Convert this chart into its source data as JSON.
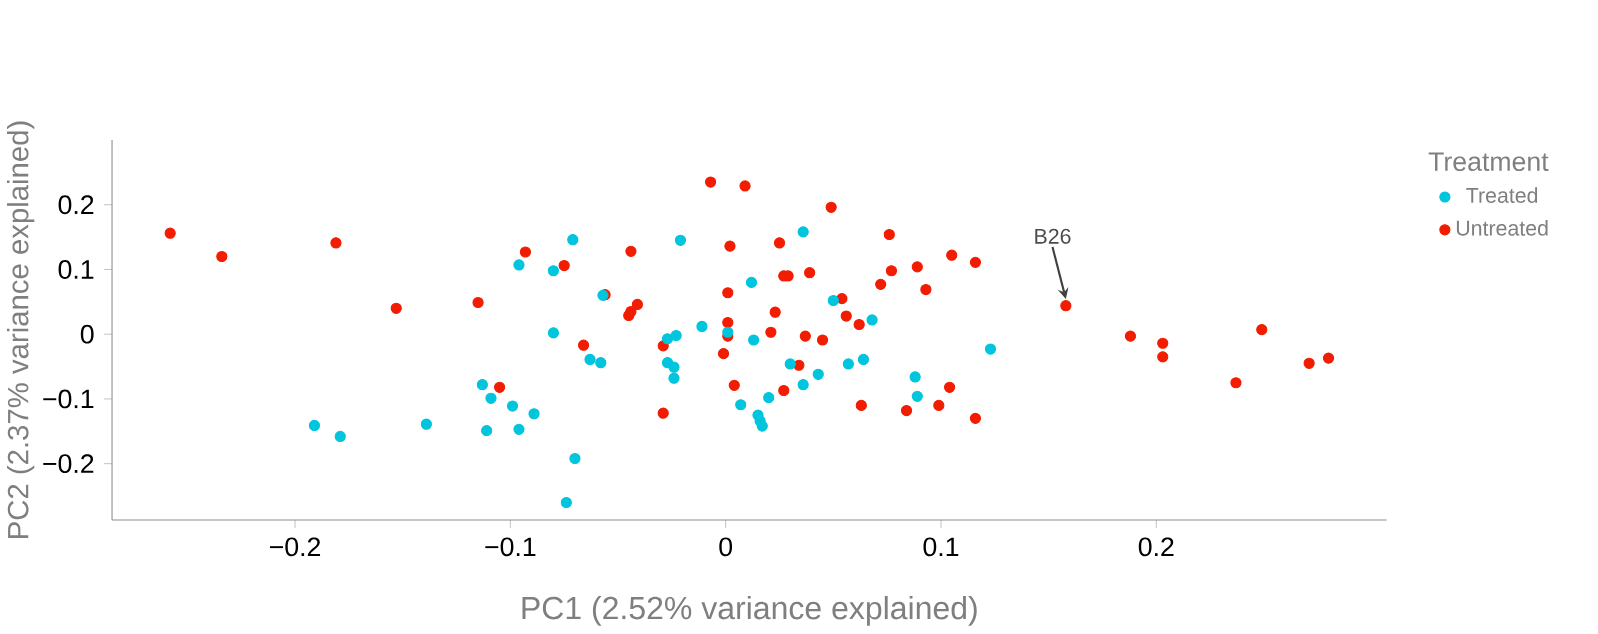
{
  "chart_data": {
    "type": "scatter",
    "xlabel": "PC1 (2.52% variance explained)",
    "ylabel": "PC2 (2.37% variance explained)",
    "legend_title": "Treatment",
    "xlim": [
      -0.285,
      0.307
    ],
    "ylim": [
      -0.287,
      0.3
    ],
    "xticks": [
      {
        "value": -0.2,
        "label": "−0.2"
      },
      {
        "value": -0.1,
        "label": "−0.1"
      },
      0,
      0.1,
      0.2
    ],
    "yticks": [
      {
        "value": -0.2,
        "label": "−0.2"
      },
      {
        "value": -0.1,
        "label": "−0.1"
      },
      0,
      0.1,
      0.2
    ],
    "grid": false,
    "legend": "top right",
    "marker": "circle",
    "annotations": [
      {
        "text": "B26",
        "x": 0.158,
        "y": 0.044
      }
    ],
    "series": [
      {
        "name": "Treated",
        "color": "#00c5dc",
        "x": [
          -0.096,
          -0.08,
          -0.071,
          -0.08,
          -0.113,
          -0.109,
          -0.099,
          -0.089,
          -0.111,
          -0.096,
          -0.191,
          -0.179,
          -0.139,
          -0.074,
          -0.07,
          -0.021,
          0.036,
          0.012,
          -0.057,
          0.05,
          0.068,
          -0.011,
          0.001,
          -0.027,
          -0.023,
          0.013,
          0.123,
          -0.063,
          -0.058,
          -0.027,
          -0.024,
          -0.024,
          0.03,
          0.043,
          0.057,
          0.064,
          0.036,
          0.088,
          0.089,
          0.02,
          0.007,
          0.015,
          0.016,
          0.017
        ],
        "values": [
          0.107,
          0.098,
          0.146,
          0.002,
          -0.078,
          -0.099,
          -0.111,
          -0.123,
          -0.149,
          -0.147,
          -0.141,
          -0.158,
          -0.139,
          -0.26,
          -0.192,
          0.145,
          0.158,
          0.08,
          0.06,
          0.052,
          0.022,
          0.012,
          0.003,
          -0.007,
          -0.002,
          -0.009,
          -0.023,
          -0.039,
          -0.044,
          -0.044,
          -0.051,
          -0.068,
          -0.046,
          -0.062,
          -0.046,
          -0.039,
          -0.078,
          -0.066,
          -0.096,
          -0.098,
          -0.109,
          -0.125,
          -0.134,
          -0.142
        ]
      },
      {
        "name": "Untreated",
        "color": "#f21d00",
        "x": [
          -0.258,
          -0.234,
          -0.181,
          -0.153,
          -0.115,
          -0.105,
          -0.093,
          -0.075,
          -0.007,
          0.009,
          0.049,
          0.076,
          -0.044,
          0.002,
          0.025,
          0.105,
          0.116,
          0.077,
          0.089,
          0.027,
          0.029,
          0.039,
          0.072,
          0.093,
          -0.056,
          0.001,
          -0.041,
          -0.044,
          -0.045,
          0.023,
          0.054,
          0.056,
          0.062,
          0.001,
          0.021,
          0.001,
          0.037,
          0.045,
          -0.066,
          -0.029,
          -0.001,
          0.034,
          0.004,
          0.027,
          0.104,
          0.063,
          0.084,
          0.099,
          0.116,
          -0.029,
          0.158,
          0.188,
          0.203,
          0.203,
          0.249,
          0.237,
          0.271,
          0.28
        ],
        "values": [
          0.156,
          0.12,
          0.141,
          0.04,
          0.049,
          -0.082,
          0.127,
          0.106,
          0.235,
          0.229,
          0.196,
          0.154,
          0.128,
          0.136,
          0.141,
          0.122,
          0.111,
          0.098,
          0.104,
          0.09,
          0.09,
          0.095,
          0.077,
          0.069,
          0.061,
          0.064,
          0.046,
          0.035,
          0.029,
          0.034,
          0.055,
          0.028,
          0.015,
          0.018,
          0.003,
          -0.003,
          -0.003,
          -0.009,
          -0.017,
          -0.018,
          -0.03,
          -0.048,
          -0.079,
          -0.087,
          -0.082,
          -0.11,
          -0.118,
          -0.11,
          -0.13,
          -0.122,
          0.044,
          -0.003,
          -0.014,
          -0.035,
          0.007,
          -0.075,
          -0.045,
          -0.037
        ]
      }
    ]
  }
}
